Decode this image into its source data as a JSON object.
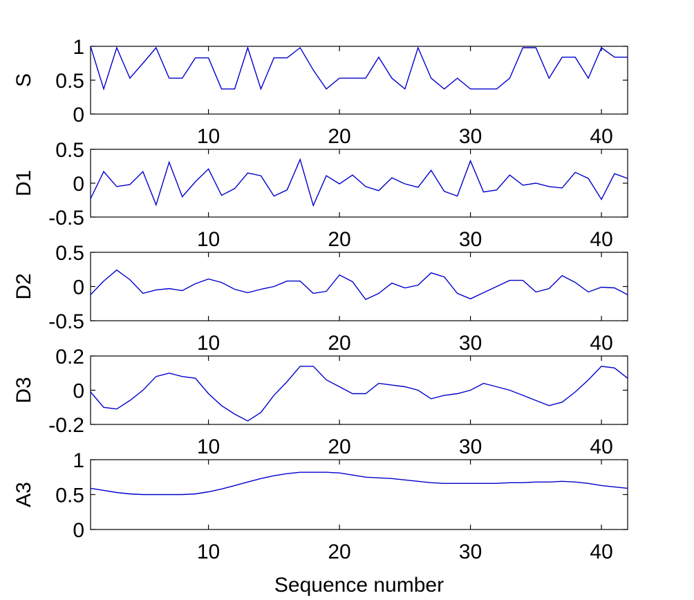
{
  "chart_data": [
    {
      "type": "line",
      "ylabel": "S",
      "ylim": [
        0,
        1
      ],
      "yticks": [
        "0",
        "0.5",
        "1"
      ],
      "xlim": [
        1,
        42
      ],
      "xticks": [
        "10",
        "20",
        "30",
        "40"
      ],
      "color": "#0000cc",
      "x": [
        1,
        2,
        3,
        4,
        5,
        6,
        7,
        8,
        9,
        10,
        11,
        12,
        13,
        14,
        15,
        16,
        17,
        18,
        19,
        20,
        21,
        22,
        23,
        24,
        25,
        26,
        27,
        28,
        29,
        30,
        31,
        32,
        33,
        34,
        35,
        36,
        37,
        38,
        39,
        40,
        41,
        42
      ],
      "values": [
        1.0,
        0.37,
        0.98,
        0.53,
        0.75,
        0.98,
        0.53,
        0.53,
        0.83,
        0.83,
        0.37,
        0.37,
        0.98,
        0.37,
        0.83,
        0.83,
        0.98,
        0.65,
        0.37,
        0.53,
        0.53,
        0.53,
        0.84,
        0.53,
        0.37,
        0.98,
        0.53,
        0.37,
        0.53,
        0.37,
        0.37,
        0.37,
        0.53,
        0.98,
        0.98,
        0.53,
        0.84,
        0.84,
        0.53,
        0.98,
        0.84,
        0.84
      ]
    },
    {
      "type": "line",
      "ylabel": "D1",
      "ylim": [
        -0.5,
        0.5
      ],
      "yticks": [
        "-0.5",
        "0",
        "0.5"
      ],
      "xlim": [
        1,
        42
      ],
      "xticks": [
        "10",
        "20",
        "30",
        "40"
      ],
      "color": "#0000cc",
      "x": [
        1,
        2,
        3,
        4,
        5,
        6,
        7,
        8,
        9,
        10,
        11,
        12,
        13,
        14,
        15,
        16,
        17,
        18,
        19,
        20,
        21,
        22,
        23,
        24,
        25,
        26,
        27,
        28,
        29,
        30,
        31,
        32,
        33,
        34,
        35,
        36,
        37,
        38,
        39,
        40,
        41,
        42
      ],
      "values": [
        -0.23,
        0.17,
        -0.05,
        -0.02,
        0.17,
        -0.32,
        0.31,
        -0.2,
        0.02,
        0.21,
        -0.18,
        -0.08,
        0.15,
        0.11,
        -0.19,
        -0.1,
        0.35,
        -0.33,
        0.11,
        -0.01,
        0.12,
        -0.05,
        -0.11,
        0.08,
        -0.01,
        -0.06,
        0.19,
        -0.12,
        -0.19,
        0.33,
        -0.13,
        -0.1,
        0.12,
        -0.03,
        0.0,
        -0.05,
        -0.07,
        0.16,
        0.07,
        -0.24,
        0.14,
        0.07
      ]
    },
    {
      "type": "line",
      "ylabel": "D2",
      "ylim": [
        -0.5,
        0.5
      ],
      "yticks": [
        "-0.5",
        "0",
        "0.5"
      ],
      "xlim": [
        1,
        42
      ],
      "xticks": [
        "10",
        "20",
        "30",
        "40"
      ],
      "color": "#0000cc",
      "x": [
        1,
        2,
        3,
        4,
        5,
        6,
        7,
        8,
        9,
        10,
        11,
        12,
        13,
        14,
        15,
        16,
        17,
        18,
        19,
        20,
        21,
        22,
        23,
        24,
        25,
        26,
        27,
        28,
        29,
        30,
        31,
        32,
        33,
        34,
        35,
        36,
        37,
        38,
        39,
        40,
        41,
        42
      ],
      "values": [
        -0.12,
        0.08,
        0.24,
        0.1,
        -0.1,
        -0.05,
        -0.03,
        -0.06,
        0.04,
        0.11,
        0.06,
        -0.04,
        -0.09,
        -0.04,
        0.0,
        0.08,
        0.08,
        -0.1,
        -0.07,
        0.17,
        0.07,
        -0.19,
        -0.1,
        0.05,
        -0.02,
        0.02,
        0.2,
        0.14,
        -0.1,
        -0.18,
        -0.09,
        0.0,
        0.09,
        0.09,
        -0.08,
        -0.03,
        0.16,
        0.06,
        -0.08,
        -0.01,
        -0.02,
        -0.12
      ]
    },
    {
      "type": "line",
      "ylabel": "D3",
      "ylim": [
        -0.2,
        0.2
      ],
      "yticks": [
        "-0.2",
        "0",
        "0.2"
      ],
      "xlim": [
        1,
        42
      ],
      "xticks": [
        "10",
        "20",
        "30",
        "40"
      ],
      "color": "#0000cc",
      "x": [
        1,
        2,
        3,
        4,
        5,
        6,
        7,
        8,
        9,
        10,
        11,
        12,
        13,
        14,
        15,
        16,
        17,
        18,
        19,
        20,
        21,
        22,
        23,
        24,
        25,
        26,
        27,
        28,
        29,
        30,
        31,
        32,
        33,
        34,
        35,
        36,
        37,
        38,
        39,
        40,
        41,
        42
      ],
      "values": [
        -0.01,
        -0.1,
        -0.11,
        -0.06,
        0.0,
        0.08,
        0.1,
        0.08,
        0.07,
        -0.02,
        -0.09,
        -0.14,
        -0.18,
        -0.13,
        -0.03,
        0.05,
        0.14,
        0.14,
        0.06,
        0.02,
        -0.02,
        -0.02,
        0.04,
        0.03,
        0.02,
        0.0,
        -0.05,
        -0.03,
        -0.02,
        0.0,
        0.04,
        0.02,
        0.0,
        -0.03,
        -0.06,
        -0.09,
        -0.07,
        -0.01,
        0.06,
        0.14,
        0.13,
        0.07
      ]
    },
    {
      "type": "line",
      "ylabel": "A3",
      "xlabel": "Sequence number",
      "ylim": [
        0,
        1
      ],
      "yticks": [
        "0",
        "0.5",
        "1"
      ],
      "xlim": [
        1,
        42
      ],
      "xticks": [
        "10",
        "20",
        "30",
        "40"
      ],
      "color": "#0000cc",
      "x": [
        1,
        2,
        3,
        4,
        5,
        6,
        7,
        8,
        9,
        10,
        11,
        12,
        13,
        14,
        15,
        16,
        17,
        18,
        19,
        20,
        21,
        22,
        23,
        24,
        25,
        26,
        27,
        28,
        29,
        30,
        31,
        32,
        33,
        34,
        35,
        36,
        37,
        38,
        39,
        40,
        41,
        42
      ],
      "values": [
        0.59,
        0.56,
        0.53,
        0.51,
        0.5,
        0.5,
        0.5,
        0.5,
        0.51,
        0.54,
        0.58,
        0.63,
        0.68,
        0.73,
        0.77,
        0.8,
        0.82,
        0.82,
        0.82,
        0.81,
        0.78,
        0.75,
        0.74,
        0.73,
        0.71,
        0.69,
        0.67,
        0.66,
        0.66,
        0.66,
        0.66,
        0.66,
        0.67,
        0.67,
        0.68,
        0.68,
        0.69,
        0.68,
        0.66,
        0.63,
        0.61,
        0.59
      ]
    }
  ]
}
